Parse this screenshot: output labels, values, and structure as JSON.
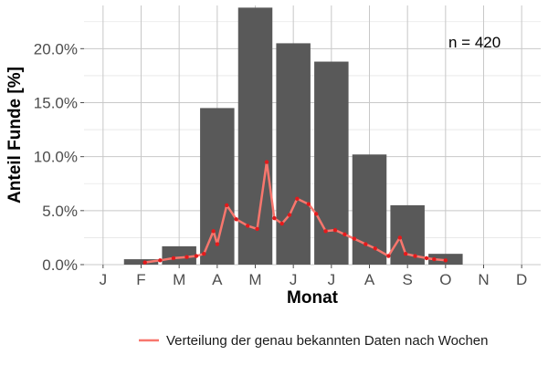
{
  "chart_data": {
    "type": "bar",
    "xlabel": "Monat",
    "ylabel": "Anteil Funde [%]",
    "annotation": "n = 420",
    "categories": [
      "J",
      "F",
      "M",
      "A",
      "M",
      "J",
      "J",
      "A",
      "S",
      "O",
      "N",
      "D"
    ],
    "values": [
      0.0,
      0.5,
      1.7,
      14.5,
      23.8,
      20.5,
      18.8,
      10.2,
      5.5,
      1.0,
      0.0,
      0.0
    ],
    "ylim": [
      0,
      24
    ],
    "yticks": [
      0,
      5,
      10,
      15,
      20
    ],
    "ytick_labels": [
      "0.0%",
      "5.0%",
      "10.0%",
      "15.0%",
      "20.0%"
    ],
    "grid": true,
    "bar_color": "#595959",
    "line_series": {
      "name": "Verteilung der genau bekannten Daten nach Wochen",
      "color": "#f8766d",
      "point_color": "#e31a1c",
      "x_month": [
        2.1,
        2.5,
        2.85,
        3.2,
        3.45,
        3.65,
        3.9,
        4.0,
        4.25,
        4.5,
        4.8,
        5.05,
        5.3,
        5.5,
        5.7,
        5.9,
        6.1,
        6.4,
        6.6,
        6.85,
        7.1,
        7.35,
        7.6,
        7.9,
        8.15,
        8.5,
        8.8,
        8.95,
        9.2,
        9.5,
        9.7,
        10.0
      ],
      "y": [
        0.2,
        0.4,
        0.6,
        0.7,
        0.8,
        1.0,
        3.1,
        1.9,
        5.5,
        4.2,
        3.6,
        3.3,
        9.5,
        4.3,
        3.8,
        4.6,
        6.1,
        5.6,
        4.7,
        3.1,
        3.2,
        2.8,
        2.4,
        1.9,
        1.5,
        0.8,
        2.5,
        1.0,
        0.8,
        0.6,
        0.5,
        0.4
      ]
    },
    "legend_position": "bottom"
  }
}
